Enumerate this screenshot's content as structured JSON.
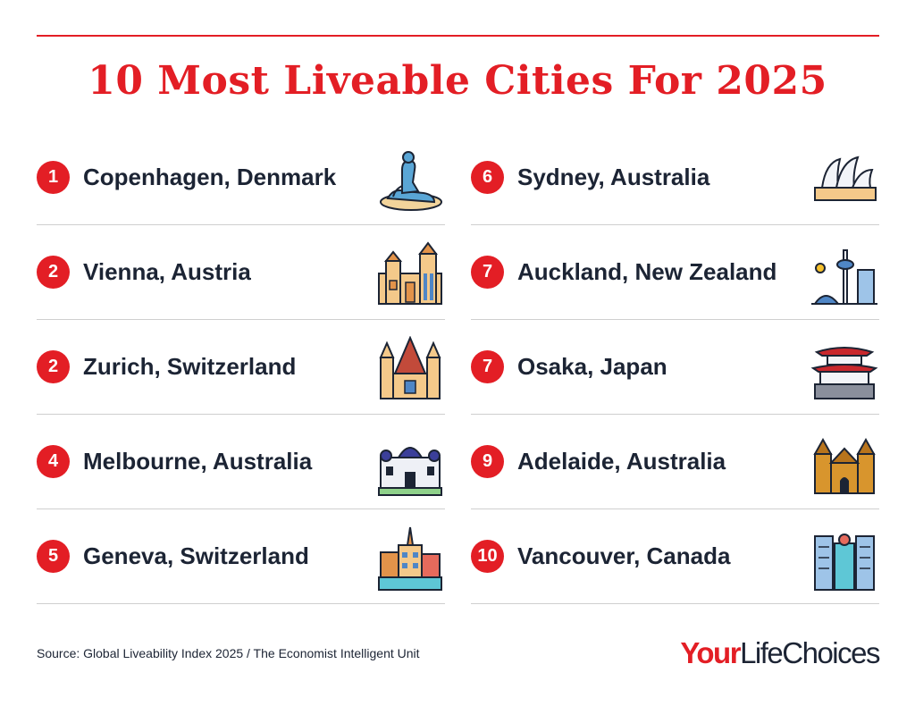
{
  "title": "10 Most Liveable Cities For 2025",
  "left_column": [
    {
      "rank": "1",
      "city": "Copenhagen, Denmark",
      "icon": "little-mermaid-statue-icon"
    },
    {
      "rank": "2",
      "city": "Vienna, Austria",
      "icon": "vienna-city-hall-icon"
    },
    {
      "rank": "2",
      "city": "Zurich, Switzerland",
      "icon": "zurich-church-icon"
    },
    {
      "rank": "4",
      "city": "Melbourne, Australia",
      "icon": "melbourne-exhibition-building-icon"
    },
    {
      "rank": "5",
      "city": "Geneva, Switzerland",
      "icon": "geneva-waterfront-icon"
    }
  ],
  "right_column": [
    {
      "rank": "6",
      "city": "Sydney, Australia",
      "icon": "sydney-opera-house-icon"
    },
    {
      "rank": "7",
      "city": "Auckland, New Zealand",
      "icon": "auckland-sky-tower-icon"
    },
    {
      "rank": "7",
      "city": "Osaka, Japan",
      "icon": "osaka-castle-icon"
    },
    {
      "rank": "9",
      "city": "Adelaide, Australia",
      "icon": "adelaide-cathedral-icon"
    },
    {
      "rank": "10",
      "city": "Vancouver, Canada",
      "icon": "vancouver-towers-icon"
    }
  ],
  "source": "Source: Global Liveability Index 2025 / The Economist Intelligent Unit",
  "logo": {
    "part1": "Your",
    "part2": "LifeChoices"
  },
  "colors": {
    "accent": "#e31e25",
    "text": "#1c2434",
    "divider": "#cfcfcf"
  }
}
